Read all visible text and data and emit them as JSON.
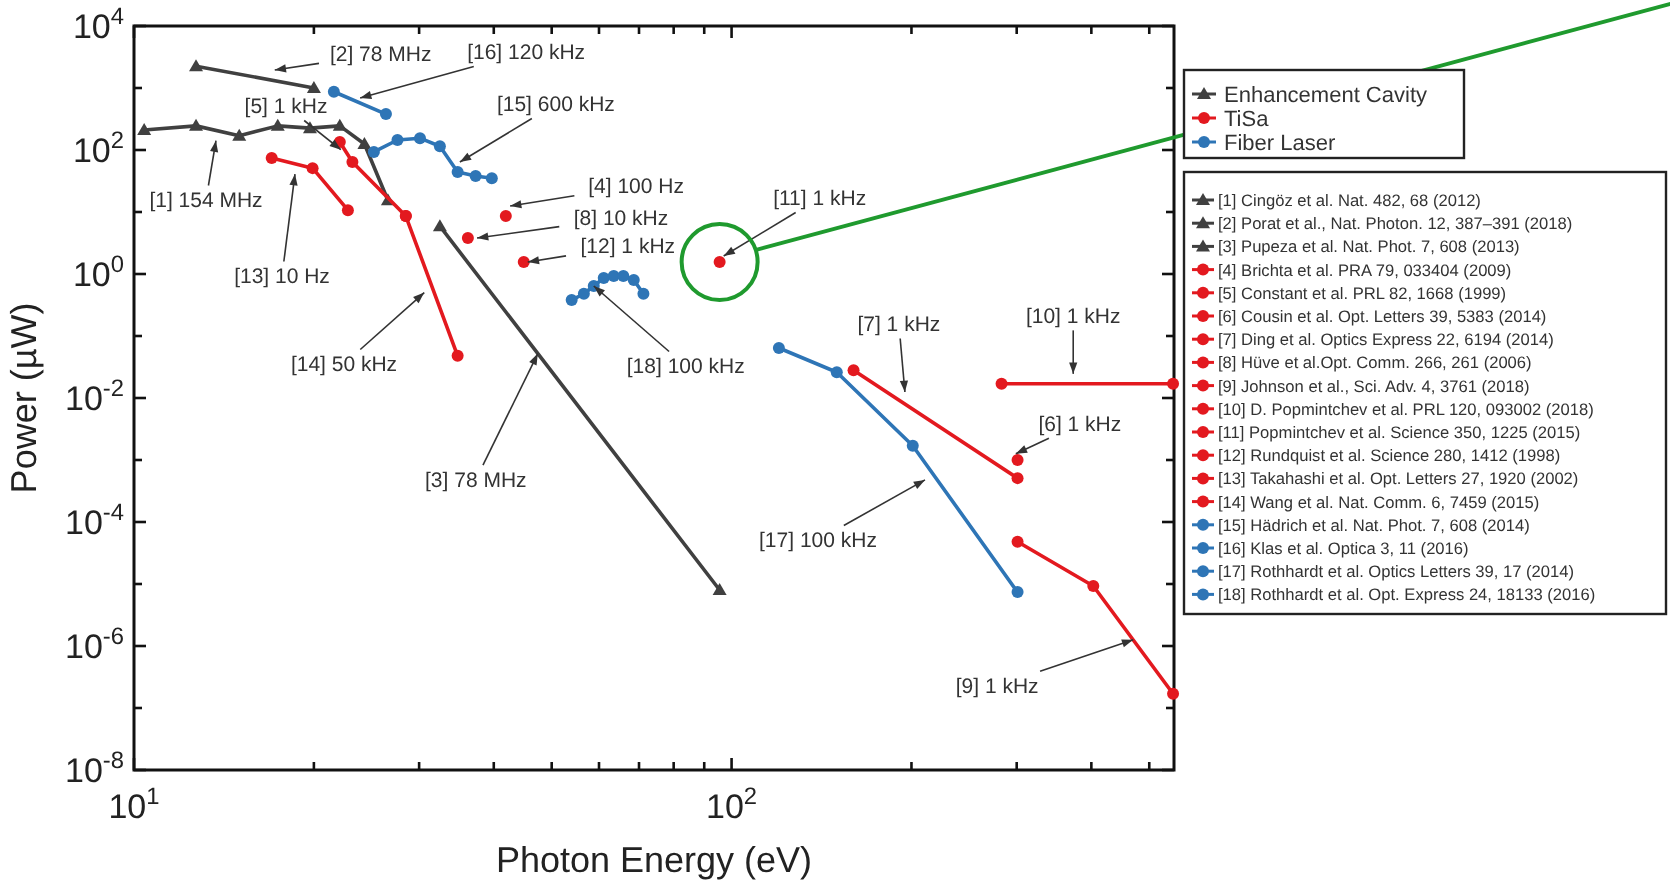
{
  "chart_data": {
    "type": "line",
    "xlabel": "Photon Energy (eV)",
    "ylabel": "Power (µW)",
    "log": "xy",
    "xlim": [
      10,
      550
    ],
    "ylim": [
      1e-08,
      10000
    ],
    "xticks": [
      {
        "value": 10,
        "label": "10$^{1}$"
      },
      {
        "value": 20,
        "label": null
      },
      {
        "value": 30,
        "label": null
      },
      {
        "value": 40,
        "label": null
      },
      {
        "value": 50,
        "label": null
      },
      {
        "value": 60,
        "label": null
      },
      {
        "value": 70,
        "label": null
      },
      {
        "value": 80,
        "label": null
      },
      {
        "value": 90,
        "label": null
      },
      {
        "value": 100,
        "label": "10$^{2}$"
      },
      {
        "value": 200,
        "label": null
      },
      {
        "value": 300,
        "label": null
      },
      {
        "value": 400,
        "label": null
      },
      {
        "value": 500,
        "label": null
      }
    ],
    "yticks": [
      {
        "value": 1e-08,
        "label": "10$^{-8}$"
      },
      {
        "value": 1e-07,
        "label": null
      },
      {
        "value": 1e-06,
        "label": "10$^{-6}$"
      },
      {
        "value": 1e-05,
        "label": null
      },
      {
        "value": 0.0001,
        "label": "10$^{-4}$"
      },
      {
        "value": 0.001,
        "label": null
      },
      {
        "value": 0.01,
        "label": "10$^{-2}$"
      },
      {
        "value": 0.1,
        "label": null
      },
      {
        "value": 1,
        "label": "10$^{0}$"
      },
      {
        "value": 10,
        "label": null
      },
      {
        "value": 100,
        "label": "10$^{2}$"
      },
      {
        "value": 1000,
        "label": null
      },
      {
        "value": 10000,
        "label": "10$^{4}$"
      }
    ],
    "grid": false,
    "legend": "right",
    "line_style": "solid",
    "series": [
      {
        "name": "[1] Cingöz et al. Nat. 482, 68 (2012)",
        "color": "#404040",
        "marker": "triangle",
        "x": [
          10.4,
          12.7,
          15.0,
          17.4,
          19.7,
          22.1,
          24.3,
          26.6
        ],
        "values": [
          210,
          245,
          170,
          245,
          225,
          245,
          125,
          15.5
        ]
      },
      {
        "name": "[2] Porat et al., Nat. Photon. 12, 387–391 (2018)",
        "color": "#404040",
        "marker": "triangle",
        "x": [
          12.7,
          20.0
        ],
        "values": [
          2250,
          1000
        ]
      },
      {
        "name": "[3] Pupeza et al. Nat. Phot. 7, 608 (2013)",
        "color": "#404040",
        "marker": "triangle",
        "x": [
          32.5,
          95.5
        ],
        "values": [
          5.9,
          8e-06
        ]
      },
      {
        "name": "[4] Brichta et al. PRA 79, 033404 (2009)",
        "color": "#e3191f",
        "marker": "circle",
        "x": [
          41.9
        ],
        "values": [
          8.6
        ]
      },
      {
        "name": "[5] Constant et al. PRL 82, 1668 (1999)",
        "color": "#e3191f",
        "marker": "circle",
        "x": [
          22.1,
          23.2,
          28.5
        ],
        "values": [
          135,
          64,
          8.6
        ]
      },
      {
        "name": "[6] Cousin et al. Opt. Letters 39, 5383 (2014)",
        "color": "#e3191f",
        "marker": "circle",
        "x": [
          301
        ],
        "values": [
          0.001
        ]
      },
      {
        "name": "[7] Ding et al. Optics Express 22, 6194 (2014)",
        "color": "#e3191f",
        "marker": "circle",
        "x": [
          160,
          301
        ],
        "values": [
          0.028,
          0.00051
        ]
      },
      {
        "name": "[8] Hüve et al.Opt. Comm. 266, 261 (2006)",
        "color": "#e3191f",
        "marker": "circle",
        "x": [
          36.2
        ],
        "values": [
          3.8
        ]
      },
      {
        "name": "[9] Johnson et al., Sci. Adv. 4, 3761 (2018)",
        "color": "#e3191f",
        "marker": "circle",
        "x": [
          301,
          403,
          548
        ],
        "values": [
          4.8e-05,
          9.3e-06,
          1.7e-07
        ]
      },
      {
        "name": "[10] D. Popmintchev et al. PRL 120, 093002 (2018)",
        "color": "#e3191f",
        "marker": "circle",
        "x": [
          283,
          548
        ],
        "values": [
          0.017,
          0.017
        ]
      },
      {
        "name": "[11] Popmintchev et al. Science 350, 1225 (2015)",
        "color": "#e3191f",
        "marker": "circle",
        "x": [
          95.5
        ],
        "values": [
          1.56
        ]
      },
      {
        "name": "[12] Rundquist et al. Science 280, 1412 (1998)",
        "color": "#e3191f",
        "marker": "circle",
        "x": [
          44.9
        ],
        "values": [
          1.56
        ]
      },
      {
        "name": "[13] Takahashi et al. Opt. Letters 27, 1920 (2002)",
        "color": "#e3191f",
        "marker": "circle",
        "x": [
          17.0,
          19.9,
          22.8
        ],
        "values": [
          74,
          51,
          10.7
        ]
      },
      {
        "name": "[14] Wang et al. Nat. Comm. 6, 7459 (2015)",
        "color": "#e3191f",
        "marker": "circle",
        "x": [
          28.5,
          34.8
        ],
        "values": [
          8.6,
          0.048
        ]
      },
      {
        "name": "[15] Hädrich et al. Nat. Phot. 7, 608 (2014)",
        "color": "#2e75b6",
        "marker": "circle",
        "x": [
          25.2,
          27.6,
          30.1,
          32.5,
          34.8,
          37.3,
          39.7
        ],
        "values": [
          93,
          145,
          155,
          115,
          44,
          38,
          35
        ]
      },
      {
        "name": "[16] Klas et al. Optica 3, 11 (2016)",
        "color": "#2e75b6",
        "marker": "circle",
        "x": [
          21.6,
          26.4
        ],
        "values": [
          870,
          380
        ]
      },
      {
        "name": "[17] Rothhardt et al. Optics Letters 39, 17 (2014)",
        "color": "#2e75b6",
        "marker": "circle",
        "x": [
          120,
          150,
          201,
          301
        ],
        "values": [
          0.064,
          0.026,
          0.0017,
          7.4e-06
        ]
      },
      {
        "name": "[18] Rothhardt et al. Opt. Express 24, 18133 (2016)",
        "color": "#2e75b6",
        "marker": "circle",
        "x": [
          54.0,
          56.6,
          58.8,
          61.1,
          63.5,
          65.9,
          68.6,
          71.2
        ],
        "values": [
          0.38,
          0.48,
          0.64,
          0.86,
          0.93,
          0.93,
          0.8,
          0.48
        ]
      }
    ],
    "annotations": [
      {
        "text": "[2] 78 MHz",
        "x": 17.2,
        "y": 1950
      },
      {
        "text": "[16] 120 kHz",
        "x": 23.9,
        "y": 690
      },
      "[5] 1 kHz",
      {
        "text": "[15] 600 kHz",
        "x": 35.1,
        "y": 64
      },
      "[1] 154 MHz",
      "[13] 10 Hz",
      {
        "text": "[4] 100 Hz",
        "x": 42.6,
        "y": 12.5
      },
      {
        "text": "[8] 10 kHz",
        "x": 37.5,
        "y": 3.8
      },
      {
        "text": "[12] 1 kHz",
        "x": 45.6,
        "y": 1.56
      },
      {
        "text": "[11] 1 kHz",
        "x": 97,
        "y": 1.95
      },
      {
        "text": "[18] 100 kHz",
        "x": 58.8,
        "y": 0.64
      },
      "[14] 50 kHz",
      {
        "text": "[3] 78 MHz",
        "x": 47.4,
        "y": 0.052
      },
      {
        "text": "[7] 1 kHz",
        "x": 195,
        "y": 0.0125
      },
      {
        "text": "[10] 1 kHz",
        "x": 373,
        "y": 0.0245
      },
      {
        "text": "[6] 1 kHz",
        "x": 299,
        "y": 0.00126
      },
      "[17] 100 kHz",
      {
        "text": "[9] 1 kHz",
        "x": 470,
        "y": 1.26e-06
      },
      "Enhancement Cavity",
      "TiSa",
      "Fiber Laser"
    ]
  }
}
